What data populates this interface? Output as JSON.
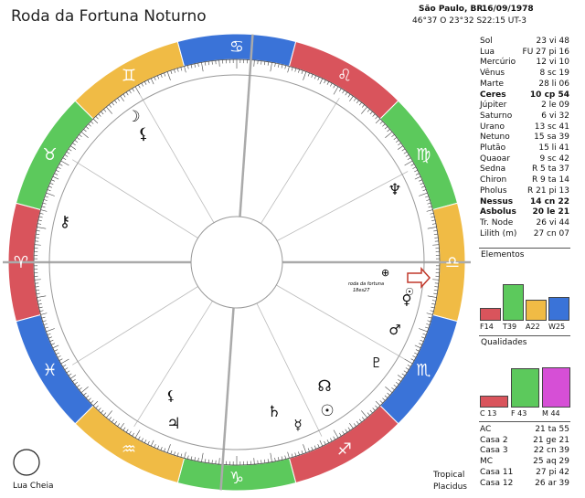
{
  "title": "Roda da Fortuna Noturno",
  "header": {
    "place": "São Paulo, BR",
    "date": "16/09/1978",
    "coords": "46°37 O 23°32 S",
    "time": "22:15 UT-3"
  },
  "colors": {
    "fire": "#d9545c",
    "earth": "#5cc95c",
    "air": "#f0bb45",
    "water": "#3a73d8",
    "cardinal": "#d9545c",
    "fixed": "#5cc95c",
    "mutable": "#d64fd6"
  },
  "zodiac_glyphs": [
    "♈",
    "♉",
    "♊",
    "♋",
    "♌",
    "♍",
    "♎",
    "♏",
    "♐",
    "♑",
    "♒",
    "♓"
  ],
  "planets": [
    {
      "name": "Sol",
      "value": "23 vi 48",
      "bold": false,
      "glyph": "☉"
    },
    {
      "name": "Lua",
      "value": "FU 27 pi 16",
      "bold": false,
      "glyph": "☽"
    },
    {
      "name": "Mercúrio",
      "value": "12 vi 10",
      "bold": false,
      "glyph": "☿"
    },
    {
      "name": "Vênus",
      "value": "8 sc 19",
      "bold": false,
      "glyph": "♀"
    },
    {
      "name": "Marte",
      "value": "28 li 06",
      "bold": false,
      "glyph": "♂"
    },
    {
      "name": "Ceres",
      "value": "10 cp 54",
      "bold": true,
      "glyph": ""
    },
    {
      "name": "Júpiter",
      "value": "2 le 09",
      "bold": false,
      "glyph": "♃"
    },
    {
      "name": "Saturno",
      "value": "6 vi 32",
      "bold": false,
      "glyph": "♄"
    },
    {
      "name": "Urano",
      "value": "13 sc 41",
      "bold": false,
      "glyph": "⛢"
    },
    {
      "name": "Netuno",
      "value": "15 sa 39",
      "bold": false,
      "glyph": "♆"
    },
    {
      "name": "Plutão",
      "value": "15 li 41",
      "bold": false,
      "glyph": "♇"
    },
    {
      "name": "Quaoar",
      "value": "9 sc 42",
      "bold": false,
      "glyph": ""
    },
    {
      "name": "Sedna",
      "value": "R 5 ta 37",
      "bold": false,
      "glyph": ""
    },
    {
      "name": "Chiron",
      "value": "R 9 ta 14",
      "bold": false,
      "glyph": "⚷"
    },
    {
      "name": "Pholus",
      "value": "R 21 pi 13",
      "bold": false,
      "glyph": ""
    },
    {
      "name": "Nessus",
      "value": "14 cn 22",
      "bold": true,
      "glyph": ""
    },
    {
      "name": "Asbolus",
      "value": "20 le 21",
      "bold": true,
      "glyph": ""
    },
    {
      "name": "Tr. Node",
      "value": "26 vi 44",
      "bold": false,
      "glyph": "☊"
    },
    {
      "name": "Lilith (m)",
      "value": "27 cn 07",
      "bold": false,
      "glyph": "⚸"
    }
  ],
  "elementos": {
    "title": "Elementos",
    "bars": [
      {
        "label": "F14",
        "value": 14
      },
      {
        "label": "T39",
        "value": 39
      },
      {
        "label": "A22",
        "value": 22
      },
      {
        "label": "W25",
        "value": 25
      }
    ]
  },
  "qualidades": {
    "title": "Qualidades",
    "bars": [
      {
        "label": "C 13",
        "value": 13
      },
      {
        "label": "F 43",
        "value": 43
      },
      {
        "label": "M 44",
        "value": 44
      }
    ]
  },
  "houses": [
    {
      "name": "AC",
      "value": "21 ta 55"
    },
    {
      "name": "Casa 2",
      "value": "21 ge 21"
    },
    {
      "name": "Casa 3",
      "value": "22 cn 39"
    },
    {
      "name": "MC",
      "value": "25 aq 29"
    },
    {
      "name": "Casa 11",
      "value": "27 pi 42"
    },
    {
      "name": "Casa 12",
      "value": "26 ar 39"
    }
  ],
  "footer": {
    "moon_phase": "Lua Cheia",
    "zodiac_type": "Tropical",
    "house_system": "Placidus"
  },
  "wheel_symbols": {
    "fortuna_label1": "roda da fortuna",
    "fortuna_label2": "18es27",
    "part_fortune": "⊕",
    "lilith": "⚸"
  }
}
